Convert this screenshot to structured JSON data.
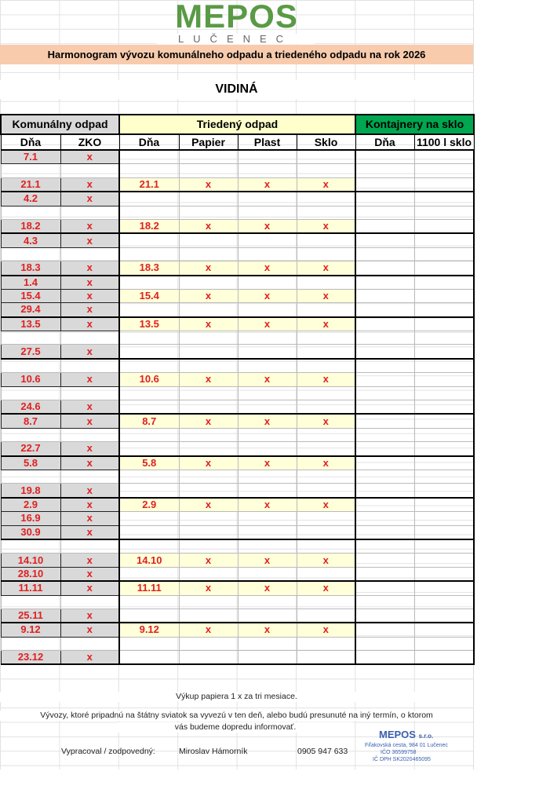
{
  "logo": {
    "name": "MEPOS",
    "city": "LUČENEC",
    "color": "#5a9a46"
  },
  "banner": "Harmonogram vývozu komunálneho odpadu a triedeného odpadu na rok 2026",
  "village": "VIDINÁ",
  "sections": {
    "komunal": "Komunálny odpad",
    "triedeny": "Triedený odpad",
    "sklo": "Kontajnery na sklo"
  },
  "headers": [
    "Dňa",
    "ZKO",
    "Dňa",
    "Papier",
    "Plast",
    "Sklo",
    "Dňa",
    "1100 l sklo"
  ],
  "colors": {
    "komunal": "#d9d9d9",
    "triedeny": "#ffffcc",
    "sklo": "#00a650",
    "banner": "#f8cbad",
    "date": "#e02020"
  },
  "rows": [
    {
      "k": "7.1",
      "z": "x"
    },
    {},
    {
      "k": "21.1",
      "z": "x",
      "t": "21.1"
    },
    {
      "k": "4.2",
      "z": "x"
    },
    {},
    {
      "k": "18.2",
      "z": "x",
      "t": "18.2"
    },
    {
      "k": "4.3",
      "z": "x"
    },
    {},
    {
      "k": "18.3",
      "z": "x",
      "t": "18.3"
    },
    {
      "k": "1.4",
      "z": "x"
    },
    {
      "k": "15.4",
      "z": "x",
      "t": "15.4"
    },
    {
      "k": "29.4",
      "z": "x"
    },
    {
      "k": "13.5",
      "z": "x",
      "t": "13.5"
    },
    {},
    {
      "k": "27.5",
      "z": "x"
    },
    {},
    {
      "k": "10.6",
      "z": "x",
      "t": "10.6"
    },
    {},
    {
      "k": "24.6",
      "z": "x"
    },
    {
      "k": "8.7",
      "z": "x",
      "t": "8.7"
    },
    {},
    {
      "k": "22.7",
      "z": "x"
    },
    {
      "k": "5.8",
      "z": "x",
      "t": "5.8"
    },
    {},
    {
      "k": "19.8",
      "z": "x"
    },
    {
      "k": "2.9",
      "z": "x",
      "t": "2.9"
    },
    {
      "k": "16.9",
      "z": "x"
    },
    {
      "k": "30.9",
      "z": "x"
    },
    {},
    {
      "k": "14.10",
      "z": "x",
      "t": "14.10"
    },
    {
      "k": "28.10",
      "z": "x"
    },
    {
      "k": "11.11",
      "z": "x",
      "t": "11.11"
    },
    {},
    {
      "k": "25.11",
      "z": "x"
    },
    {
      "k": "9.12",
      "z": "x",
      "t": "9.12"
    },
    {},
    {
      "k": "23.12",
      "z": "x"
    }
  ],
  "mark": "x",
  "footer": {
    "note1": "Výkup papiera 1 x za tri mesiace.",
    "note2": "Vývozy, ktoré pripadnú na štátny sviatok sa vyvezú v ten deň, alebo budú presunuté na iný termín, o ktorom",
    "note3": "vás budeme dopredu informovať.",
    "label": "Vypracoval / zodpovedný:",
    "person": "Miroslav Hámorník",
    "phone": "0905 947 633",
    "stamp": {
      "name": "MEPOS",
      "suffix": "s.r.o.",
      "address": "Fiľakovská cesta, 984 01 Lučenec",
      "ico": "IČO 36599758",
      "dic": "IČ DPH SK2020465095"
    }
  }
}
